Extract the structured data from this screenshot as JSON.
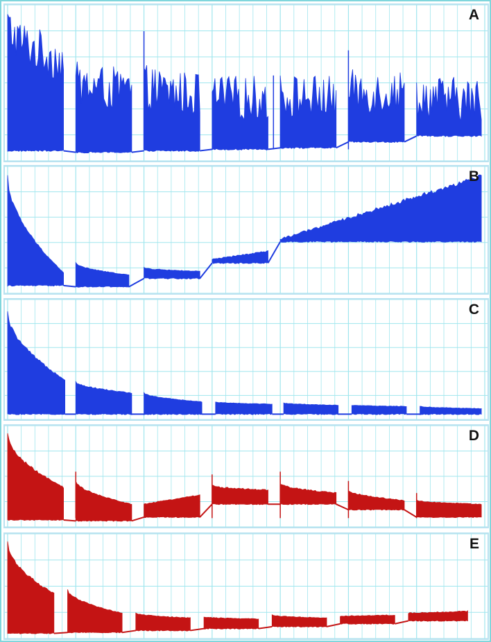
{
  "chart_data": [
    {
      "type": "area",
      "label": "A",
      "color": "#1f3de0",
      "grid": true,
      "x": [
        0,
        0.5,
        1,
        1.5,
        2,
        2.5,
        3,
        3.5,
        4,
        4.5,
        5,
        5.5,
        6,
        6.5,
        7
      ],
      "segments": [
        {
          "x0": 0.0,
          "x1": 0.82,
          "start": 0.9,
          "end": 0.65,
          "base": 0.04
        },
        {
          "x0": 1.0,
          "x1": 1.82,
          "start": 0.5,
          "end": 0.45,
          "base": 0.03
        },
        {
          "x0": 2.0,
          "x1": 2.82,
          "start": 0.48,
          "end": 0.42,
          "base": 0.04
        },
        {
          "x0": 3.0,
          "x1": 3.82,
          "start": 0.4,
          "end": 0.4,
          "base": 0.05
        },
        {
          "x0": 4.0,
          "x1": 4.82,
          "start": 0.42,
          "end": 0.4,
          "base": 0.06
        },
        {
          "x0": 5.0,
          "x1": 5.82,
          "start": 0.44,
          "end": 0.44,
          "base": 0.1
        },
        {
          "x0": 6.0,
          "x1": 6.95,
          "start": 0.42,
          "end": 0.38,
          "base": 0.14
        }
      ],
      "spikes": [
        {
          "x": 2.0,
          "y": 0.85
        },
        {
          "x": 5.0,
          "y": 0.72
        },
        {
          "x": 3.9,
          "y": 0.55
        }
      ]
    },
    {
      "type": "area",
      "label": "B",
      "color": "#1f3de0",
      "grid": true,
      "x": [
        0,
        1,
        2,
        3,
        4,
        5,
        6,
        7
      ],
      "segments": [
        {
          "x0": 0.0,
          "x1": 0.82,
          "start": 0.95,
          "end": 0.14,
          "base": 0.03
        },
        {
          "x0": 1.0,
          "x1": 1.78,
          "start": 0.22,
          "end": 0.12,
          "base": 0.02
        },
        {
          "x0": 2.0,
          "x1": 2.82,
          "start": 0.18,
          "end": 0.15,
          "base": 0.09
        },
        {
          "x0": 3.0,
          "x1": 3.82,
          "start": 0.25,
          "end": 0.32,
          "base": 0.22
        },
        {
          "x0": 4.0,
          "x1": 6.95,
          "start": 0.42,
          "end": 0.95,
          "base": 0.4
        }
      ],
      "spikes": []
    },
    {
      "type": "area",
      "label": "C",
      "color": "#1f3de0",
      "grid": true,
      "x": [
        0,
        1,
        2,
        3,
        4,
        5,
        6,
        7
      ],
      "segments": [
        {
          "x0": 0.0,
          "x1": 0.84,
          "start": 0.92,
          "end": 0.32,
          "base": 0.01
        },
        {
          "x0": 1.0,
          "x1": 1.82,
          "start": 0.3,
          "end": 0.2,
          "base": 0.01
        },
        {
          "x0": 2.0,
          "x1": 2.85,
          "start": 0.2,
          "end": 0.12,
          "base": 0.01
        },
        {
          "x0": 3.05,
          "x1": 3.88,
          "start": 0.12,
          "end": 0.1,
          "base": 0.01
        },
        {
          "x0": 4.05,
          "x1": 4.85,
          "start": 0.11,
          "end": 0.09,
          "base": 0.01
        },
        {
          "x0": 5.05,
          "x1": 5.85,
          "start": 0.09,
          "end": 0.08,
          "base": 0.01
        },
        {
          "x0": 6.05,
          "x1": 6.95,
          "start": 0.08,
          "end": 0.06,
          "base": 0.01
        }
      ],
      "spikes": []
    },
    {
      "type": "area",
      "label": "D",
      "color": "#c41414",
      "grid": true,
      "x": [
        0,
        1,
        2,
        3,
        4,
        5,
        6,
        7
      ],
      "segments": [
        {
          "x0": 0.0,
          "x1": 0.82,
          "start": 0.95,
          "end": 0.38,
          "base": 0.03
        },
        {
          "x0": 1.0,
          "x1": 1.82,
          "start": 0.45,
          "end": 0.2,
          "base": 0.02
        },
        {
          "x0": 2.0,
          "x1": 2.82,
          "start": 0.2,
          "end": 0.3,
          "base": 0.06
        },
        {
          "x0": 3.0,
          "x1": 3.82,
          "start": 0.4,
          "end": 0.35,
          "base": 0.2
        },
        {
          "x0": 4.0,
          "x1": 4.82,
          "start": 0.42,
          "end": 0.32,
          "base": 0.2
        },
        {
          "x0": 5.0,
          "x1": 5.82,
          "start": 0.35,
          "end": 0.24,
          "base": 0.14
        },
        {
          "x0": 6.0,
          "x1": 6.95,
          "start": 0.24,
          "end": 0.2,
          "base": 0.06
        }
      ],
      "spikes": [
        {
          "x": 1.0,
          "y": 0.55
        },
        {
          "x": 3.0,
          "y": 0.52
        },
        {
          "x": 4.0,
          "y": 0.55
        },
        {
          "x": 5.0,
          "y": 0.45
        },
        {
          "x": 6.0,
          "y": 0.32
        }
      ]
    },
    {
      "type": "area",
      "label": "E",
      "color": "#c41414",
      "grid": true,
      "x": [
        0,
        1,
        2,
        3,
        4,
        5,
        6,
        7
      ],
      "segments": [
        {
          "x0": 0.0,
          "x1": 0.68,
          "start": 0.95,
          "end": 0.42,
          "base": 0.01
        },
        {
          "x0": 0.88,
          "x1": 1.68,
          "start": 0.46,
          "end": 0.22,
          "base": 0.02
        },
        {
          "x0": 1.88,
          "x1": 2.68,
          "start": 0.22,
          "end": 0.17,
          "base": 0.04
        },
        {
          "x0": 2.88,
          "x1": 3.68,
          "start": 0.18,
          "end": 0.16,
          "base": 0.06
        },
        {
          "x0": 3.88,
          "x1": 4.68,
          "start": 0.2,
          "end": 0.17,
          "base": 0.08
        },
        {
          "x0": 4.88,
          "x1": 5.68,
          "start": 0.19,
          "end": 0.2,
          "base": 0.11
        },
        {
          "x0": 5.88,
          "x1": 6.75,
          "start": 0.22,
          "end": 0.24,
          "base": 0.14
        }
      ],
      "spikes": []
    }
  ]
}
